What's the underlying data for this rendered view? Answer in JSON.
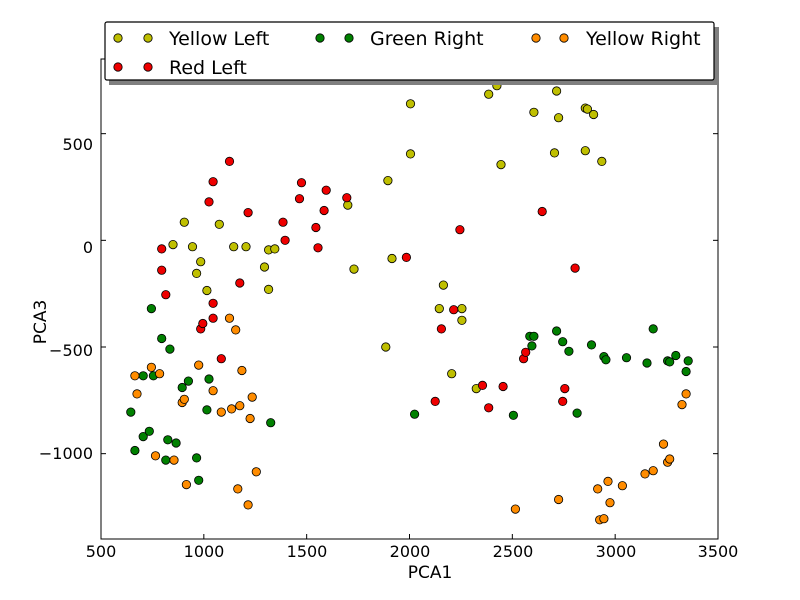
{
  "chart_data": {
    "type": "scatter",
    "xlabel": "PCA1",
    "ylabel": "PCA3",
    "xlim": [
      500,
      3500
    ],
    "ylim": [
      -1400,
      850
    ],
    "xticks": [
      "500",
      "1000",
      "1500",
      "2000",
      "2500",
      "3000",
      "3500"
    ],
    "yticks": [
      "500",
      "0",
      "−500",
      "−1000"
    ],
    "xtick_values": [
      500,
      1000,
      1500,
      2000,
      2500,
      3000,
      3500
    ],
    "ytick_values": [
      500,
      0,
      -500,
      -1000
    ],
    "legend_placement": "top",
    "series": [
      {
        "name": "Yellow Left",
        "color": "#bfbf00",
        "points": [
          [
            850,
            -20
          ],
          [
            905,
            85
          ],
          [
            945,
            -30
          ],
          [
            965,
            -155
          ],
          [
            985,
            -100
          ],
          [
            1015,
            -235
          ],
          [
            1075,
            75
          ],
          [
            1145,
            -30
          ],
          [
            1205,
            -30
          ],
          [
            1295,
            -125
          ],
          [
            1315,
            -45
          ],
          [
            1345,
            -40
          ],
          [
            1315,
            -230
          ],
          [
            1700,
            165
          ],
          [
            1730,
            -135
          ],
          [
            1885,
            -500
          ],
          [
            1895,
            280
          ],
          [
            1915,
            -85
          ],
          [
            2005,
            640
          ],
          [
            2005,
            405
          ],
          [
            2145,
            -320
          ],
          [
            2165,
            -210
          ],
          [
            2205,
            -625
          ],
          [
            2255,
            -320
          ],
          [
            2255,
            -375
          ],
          [
            2325,
            -695
          ],
          [
            2385,
            685
          ],
          [
            2425,
            725
          ],
          [
            2445,
            355
          ],
          [
            2605,
            600
          ],
          [
            2705,
            410
          ],
          [
            2715,
            700
          ],
          [
            2725,
            575
          ],
          [
            2855,
            620
          ],
          [
            2865,
            615
          ],
          [
            2855,
            420
          ],
          [
            2895,
            590
          ],
          [
            2935,
            370
          ]
        ]
      },
      {
        "name": "Red Left",
        "color": "#ee0000",
        "points": [
          [
            795,
            -40
          ],
          [
            795,
            -140
          ],
          [
            815,
            -255
          ],
          [
            985,
            -415
          ],
          [
            995,
            -390
          ],
          [
            1025,
            180
          ],
          [
            1045,
            275
          ],
          [
            1045,
            -365
          ],
          [
            1045,
            -295
          ],
          [
            1085,
            -555
          ],
          [
            1125,
            370
          ],
          [
            1175,
            -200
          ],
          [
            1215,
            130
          ],
          [
            1385,
            85
          ],
          [
            1395,
            0
          ],
          [
            1465,
            195
          ],
          [
            1475,
            270
          ],
          [
            1545,
            60
          ],
          [
            1555,
            -35
          ],
          [
            1585,
            140
          ],
          [
            1595,
            235
          ],
          [
            1695,
            200
          ],
          [
            1985,
            -80
          ],
          [
            2125,
            -755
          ],
          [
            2155,
            -415
          ],
          [
            2215,
            -325
          ],
          [
            2245,
            50
          ],
          [
            2355,
            -680
          ],
          [
            2385,
            -785
          ],
          [
            2455,
            -685
          ],
          [
            2555,
            -555
          ],
          [
            2565,
            -525
          ],
          [
            2645,
            135
          ],
          [
            2745,
            -755
          ],
          [
            2755,
            -695
          ],
          [
            2805,
            -130
          ]
        ]
      },
      {
        "name": "Green Right",
        "color": "#008000",
        "points": [
          [
            645,
            -805
          ],
          [
            665,
            -985
          ],
          [
            705,
            -920
          ],
          [
            705,
            -635
          ],
          [
            735,
            -895
          ],
          [
            745,
            -320
          ],
          [
            755,
            -635
          ],
          [
            795,
            -460
          ],
          [
            815,
            -1030
          ],
          [
            825,
            -935
          ],
          [
            835,
            -510
          ],
          [
            865,
            -950
          ],
          [
            895,
            -690
          ],
          [
            925,
            -660
          ],
          [
            965,
            -1020
          ],
          [
            975,
            -1125
          ],
          [
            1015,
            -795
          ],
          [
            1025,
            -650
          ],
          [
            1325,
            -855
          ],
          [
            2025,
            -815
          ],
          [
            2505,
            -820
          ],
          [
            2585,
            -450
          ],
          [
            2595,
            -495
          ],
          [
            2605,
            -450
          ],
          [
            2715,
            -425
          ],
          [
            2745,
            -475
          ],
          [
            2775,
            -520
          ],
          [
            2815,
            -810
          ],
          [
            2885,
            -490
          ],
          [
            2945,
            -545
          ],
          [
            2955,
            -560
          ],
          [
            3055,
            -550
          ],
          [
            3155,
            -575
          ],
          [
            3185,
            -415
          ],
          [
            3255,
            -565
          ],
          [
            3265,
            -570
          ],
          [
            3295,
            -540
          ],
          [
            3345,
            -615
          ],
          [
            3355,
            -565
          ]
        ]
      },
      {
        "name": "Yellow Right",
        "color": "#ff8c00",
        "points": [
          [
            665,
            -635
          ],
          [
            675,
            -720
          ],
          [
            745,
            -595
          ],
          [
            765,
            -1010
          ],
          [
            785,
            -625
          ],
          [
            855,
            -1030
          ],
          [
            895,
            -760
          ],
          [
            905,
            -745
          ],
          [
            915,
            -1145
          ],
          [
            975,
            -585
          ],
          [
            1045,
            -705
          ],
          [
            1085,
            -805
          ],
          [
            1125,
            -365
          ],
          [
            1135,
            -790
          ],
          [
            1155,
            -420
          ],
          [
            1165,
            -1165
          ],
          [
            1175,
            -775
          ],
          [
            1185,
            -610
          ],
          [
            1215,
            -1240
          ],
          [
            1225,
            -835
          ],
          [
            1235,
            -735
          ],
          [
            1255,
            -1085
          ],
          [
            2515,
            -1260
          ],
          [
            2725,
            -1215
          ],
          [
            2915,
            -1165
          ],
          [
            2925,
            -1310
          ],
          [
            2945,
            -1305
          ],
          [
            2965,
            -1130
          ],
          [
            2975,
            -1230
          ],
          [
            3035,
            -1150
          ],
          [
            3145,
            -1095
          ],
          [
            3185,
            -1080
          ],
          [
            3235,
            -955
          ],
          [
            3255,
            -1040
          ],
          [
            3265,
            -1025
          ],
          [
            3325,
            -770
          ],
          [
            3345,
            -720
          ]
        ]
      }
    ],
    "legend": [
      {
        "label": "Yellow Left",
        "series": 0
      },
      {
        "label": "Green Right",
        "series": 2
      },
      {
        "label": "Yellow Right",
        "series": 3
      },
      {
        "label": "Red Left",
        "series": 1
      }
    ]
  }
}
